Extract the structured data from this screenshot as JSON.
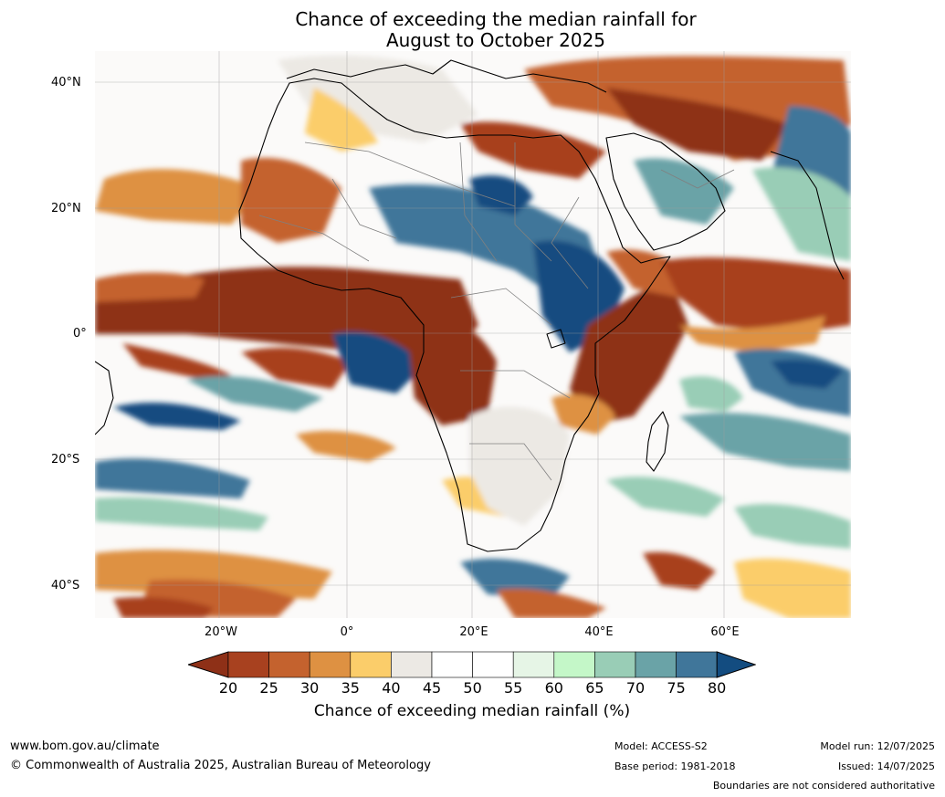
{
  "title": {
    "line1": "Chance of exceeding the median rainfall for",
    "line2": "August to October 2025"
  },
  "map": {
    "lat_labels": [
      "40°N",
      "20°N",
      "0°",
      "20°S",
      "40°S"
    ],
    "lon_labels": [
      "20°W",
      "0°",
      "20°E",
      "40°E",
      "60°E"
    ]
  },
  "colorbar": {
    "ticks": [
      "20",
      "25",
      "30",
      "35",
      "40",
      "45",
      "50",
      "55",
      "60",
      "65",
      "70",
      "75",
      "80"
    ],
    "colors": [
      "#8e3017",
      "#a8411f",
      "#c4622e",
      "#de9142",
      "#fbcd6a",
      "#ece9e4",
      "#ffffff",
      "#ffffff",
      "#e6f5e6",
      "#c4f7c8",
      "#99cdb6",
      "#6aa3a7",
      "#40769a",
      "#134c80"
    ],
    "label": "Chance of exceeding median rainfall (%)"
  },
  "footer": {
    "website": "www.bom.gov.au/climate",
    "copyright": "© Commonwealth of Australia 2025, Australian Bureau of Meteorology",
    "model": "Model: ACCESS-S2",
    "base_period": "Base period: 1981-2018",
    "model_run": "Model run: 12/07/2025",
    "issued": "Issued: 14/07/2025",
    "disclaimer": "Boundaries are not considered authoritative"
  }
}
